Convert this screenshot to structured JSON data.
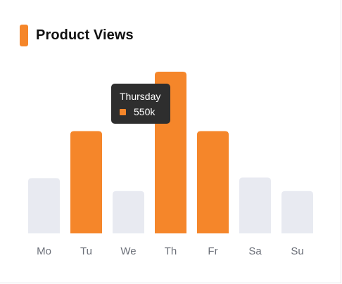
{
  "title": "Product Views",
  "colors": {
    "accent": "#f5862a",
    "inactive": "#e8eaf1",
    "tooltip_bg": "#2e2e2e",
    "tick": "#6b6f78"
  },
  "tooltip": {
    "label": "Thursday",
    "value": "550k"
  },
  "chart_data": {
    "type": "bar",
    "title": "Product Views",
    "categories": [
      "Mo",
      "Tu",
      "We",
      "Th",
      "Fr",
      "Sa",
      "Su"
    ],
    "values": [
      188,
      348,
      144,
      550,
      348,
      190,
      144
    ],
    "highlighted": [
      "Tu",
      "Th",
      "Fr"
    ],
    "active_category": "Th",
    "xlabel": "",
    "ylabel": "",
    "ylim": [
      0,
      550
    ],
    "grid": false,
    "legend": "none"
  }
}
